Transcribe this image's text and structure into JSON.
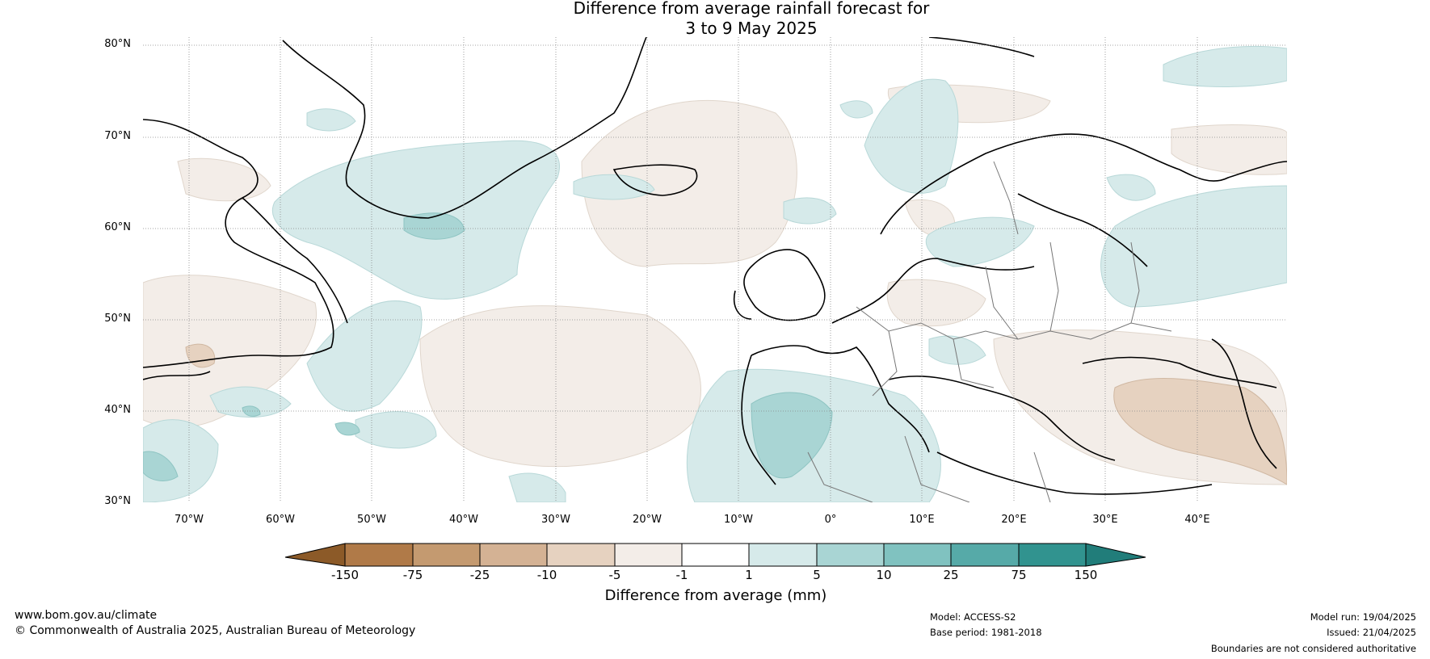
{
  "title": {
    "line1": "Difference from average rainfall forecast for",
    "line2": "3 to 9 May 2025"
  },
  "map": {
    "region": "North Atlantic and Europe",
    "lat_labels": [
      "80°N",
      "70°N",
      "60°N",
      "50°N",
      "40°N",
      "30°N"
    ],
    "lon_labels": [
      "70°W",
      "60°W",
      "50°W",
      "40°W",
      "30°W",
      "20°W",
      "10°W",
      "0°",
      "10°E",
      "20°E",
      "30°E",
      "40°E"
    ]
  },
  "colorbar": {
    "title": "Difference from average (mm)",
    "ticks": [
      "-150",
      "-75",
      "-25",
      "-10",
      "-5",
      "-1",
      "1",
      "5",
      "10",
      "25",
      "75",
      "150"
    ],
    "colors": [
      "#8c5a28",
      "#b07a48",
      "#c49a70",
      "#d4b294",
      "#e6d2c0",
      "#f3ede8",
      "#ffffff",
      "#d6eaea",
      "#a9d5d4",
      "#80c2c0",
      "#56aaa8",
      "#31938f",
      "#217d7a"
    ]
  },
  "footer": {
    "website": "www.bom.gov.au/climate",
    "copyright": "© Commonwealth of Australia 2025, Australian Bureau of Meteorology",
    "model": "Model: ACCESS-S2",
    "base_period": "Base period: 1981-2018",
    "model_run": "Model run: 19/04/2025",
    "issued": "Issued: 21/04/2025",
    "disclaimer": "Boundaries are not considered authoritative"
  }
}
